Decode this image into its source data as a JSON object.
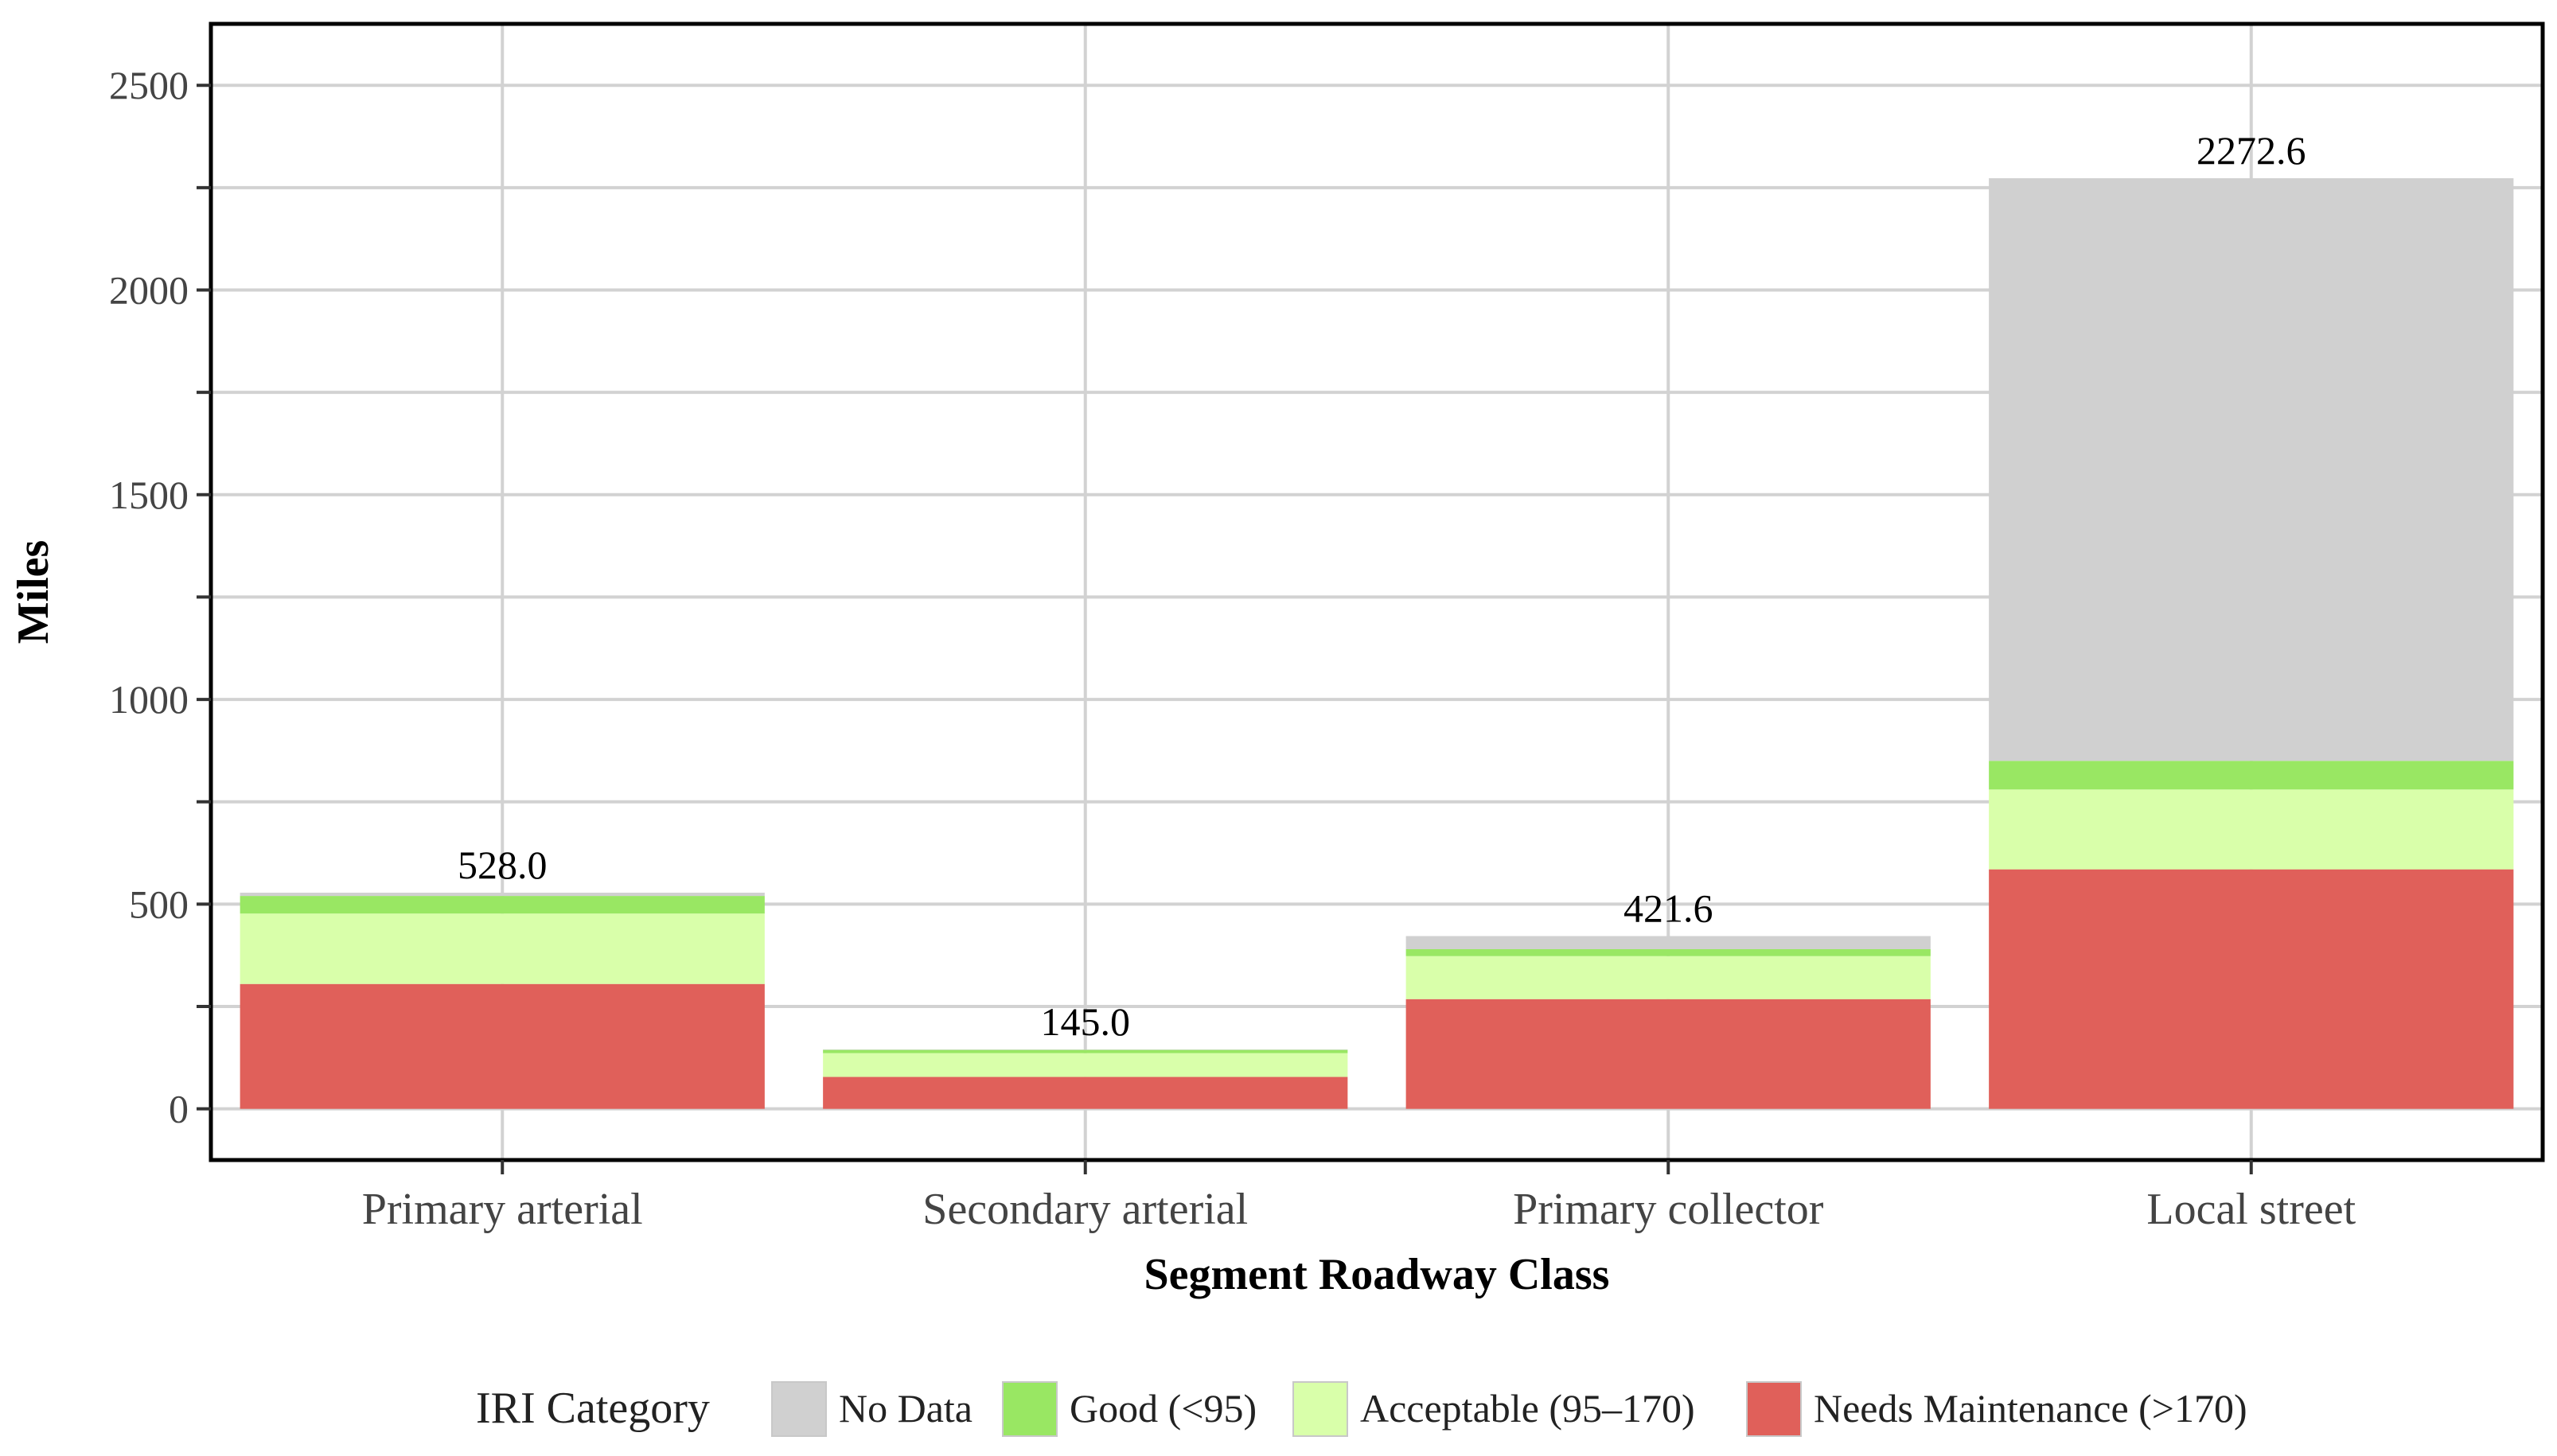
{
  "chart_data": {
    "type": "bar",
    "stacked": true,
    "xlabel": "Segment Roadway Class",
    "ylabel": "Miles",
    "ylim": [
      -125,
      2650
    ],
    "yticks": [
      0,
      500,
      1000,
      1500,
      2000,
      2500
    ],
    "ytick_labels": [
      "0",
      "500",
      "1000",
      "1500",
      "2000",
      "2500"
    ],
    "grid": true,
    "categories": [
      "Primary arterial",
      "Secondary arterial",
      "Primary collector",
      "Local street"
    ],
    "totals": [
      528.0,
      145.0,
      421.6,
      2272.6
    ],
    "total_labels": [
      "528.0",
      "145.0",
      "421.6",
      "2272.6"
    ],
    "series": [
      {
        "name": "Needs Maintenance (>170)",
        "color": "#E0605A",
        "values": [
          305,
          78,
          268,
          585
        ]
      },
      {
        "name": "Acceptable (95–170)",
        "color": "#D9FFAA",
        "values": [
          172,
          58,
          105,
          195
        ]
      },
      {
        "name": "Good (<95)",
        "color": "#99E763",
        "values": [
          43,
          8,
          17,
          70
        ]
      },
      {
        "name": "No Data",
        "color": "#D0D0D0",
        "values": [
          8,
          1,
          32,
          1423
        ]
      }
    ],
    "legend": {
      "title": "IRI Category",
      "position": "bottom",
      "order": [
        "No Data",
        "Good (<95)",
        "Acceptable (95–170)",
        "Needs Maintenance (>170)"
      ]
    }
  }
}
